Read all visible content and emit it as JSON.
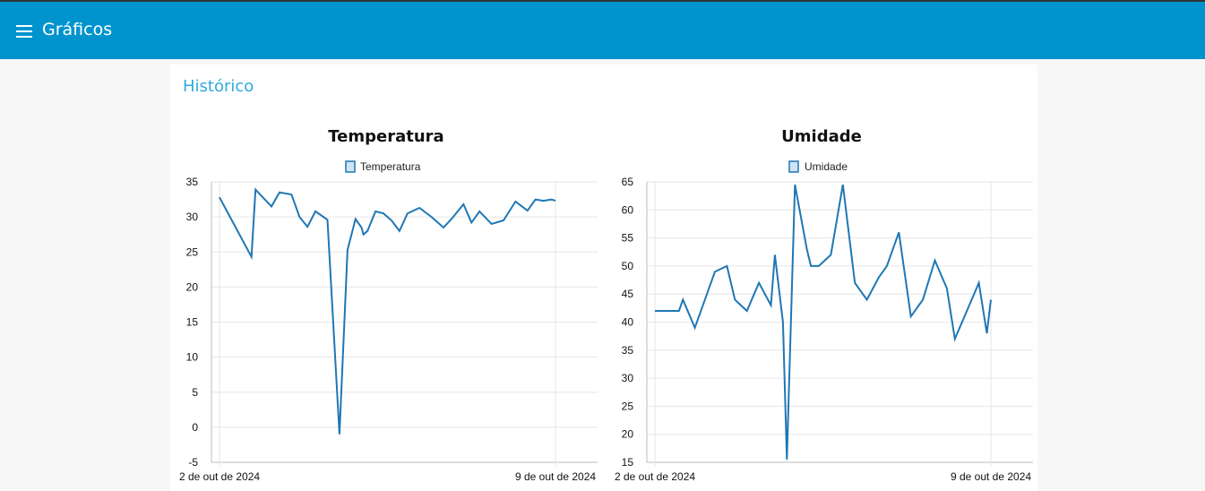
{
  "appbar": {
    "title": "Gráficos",
    "menu_icon": "hamburger-menu-icon"
  },
  "card": {
    "title": "Histórico"
  },
  "colors": {
    "appbar": "#0094ce",
    "accent_title": "#2fa9e0",
    "series": "#1f77b4",
    "legend_fill": "#cfe3f3"
  },
  "charts": [
    {
      "id": "temp",
      "title": "Temperatura",
      "legend": "Temperatura",
      "y_ticks": [
        "35",
        "30",
        "25",
        "20",
        "15",
        "10",
        "5",
        "0",
        "-5"
      ],
      "x_ticks": [
        "2 de out de 2024",
        "9 de out de 2024"
      ]
    },
    {
      "id": "umid",
      "title": "Umidade",
      "legend": "Umidade",
      "y_ticks": [
        "65",
        "60",
        "55",
        "50",
        "45",
        "40",
        "35",
        "30",
        "25",
        "20",
        "15"
      ],
      "x_ticks": [
        "2 de out de 2024",
        "9 de out de 2024"
      ]
    }
  ],
  "chart_data": [
    {
      "type": "line",
      "title": "Temperatura",
      "legend": [
        "Temperatura"
      ],
      "x_range": [
        "2024-10-02",
        "2024-10-09"
      ],
      "ylim": [
        -5,
        35
      ],
      "grid": true,
      "legend_position": "top",
      "series": [
        {
          "name": "Temperatura",
          "x": [
            "2024-10-02T00:00",
            "2024-10-02T16:00",
            "2024-10-02T18:00",
            "2024-10-03T02:00",
            "2024-10-03T06:00",
            "2024-10-03T12:00",
            "2024-10-03T16:00",
            "2024-10-03T20:00",
            "2024-10-04T00:00",
            "2024-10-04T06:00",
            "2024-10-04T12:00",
            "2024-10-04T16:00",
            "2024-10-04T20:00",
            "2024-10-04T23:00",
            "2024-10-05T00:00",
            "2024-10-05T02:00",
            "2024-10-05T06:00",
            "2024-10-05T10:00",
            "2024-10-05T14:00",
            "2024-10-05T18:00",
            "2024-10-05T22:00",
            "2024-10-06T04:00",
            "2024-10-06T10:00",
            "2024-10-06T16:00",
            "2024-10-06T20:00",
            "2024-10-07T02:00",
            "2024-10-07T06:00",
            "2024-10-07T10:00",
            "2024-10-07T16:00",
            "2024-10-07T22:00",
            "2024-10-08T04:00",
            "2024-10-08T10:00",
            "2024-10-08T14:00",
            "2024-10-08T18:00",
            "2024-10-08T22:00",
            "2024-10-09T00:00"
          ],
          "y": [
            32.8,
            24.3,
            33.9,
            31.5,
            33.5,
            33.2,
            30.0,
            28.6,
            30.8,
            29.6,
            -1.0,
            25.3,
            29.7,
            28.5,
            27.5,
            28.0,
            30.8,
            30.5,
            29.5,
            28.0,
            30.5,
            31.3,
            30.0,
            28.5,
            29.7,
            31.8,
            29.2,
            30.8,
            29.0,
            29.5,
            32.2,
            30.9,
            32.5,
            32.3,
            32.5,
            32.3
          ]
        }
      ]
    },
    {
      "type": "line",
      "title": "Umidade",
      "legend": [
        "Umidade"
      ],
      "x_range": [
        "2024-10-02",
        "2024-10-09"
      ],
      "ylim": [
        15,
        65
      ],
      "grid": true,
      "legend_position": "top",
      "series": [
        {
          "name": "Umidade",
          "x": [
            "2024-10-02T00:00",
            "2024-10-02T12:00",
            "2024-10-02T14:00",
            "2024-10-02T20:00",
            "2024-10-03T06:00",
            "2024-10-03T12:00",
            "2024-10-03T16:00",
            "2024-10-03T22:00",
            "2024-10-04T04:00",
            "2024-10-04T10:00",
            "2024-10-04T12:00",
            "2024-10-04T16:00",
            "2024-10-04T18:00",
            "2024-10-04T22:00",
            "2024-10-05T04:00",
            "2024-10-05T06:00",
            "2024-10-05T10:00",
            "2024-10-05T16:00",
            "2024-10-05T22:00",
            "2024-10-06T04:00",
            "2024-10-06T10:00",
            "2024-10-06T16:00",
            "2024-10-06T20:00",
            "2024-10-07T02:00",
            "2024-10-07T08:00",
            "2024-10-07T14:00",
            "2024-10-07T20:00",
            "2024-10-08T02:00",
            "2024-10-08T06:00",
            "2024-10-08T12:00",
            "2024-10-08T18:00",
            "2024-10-08T22:00",
            "2024-10-09T00:00"
          ],
          "y": [
            42,
            42,
            44,
            39,
            49,
            50,
            44,
            42,
            47,
            43,
            52,
            40,
            15.5,
            64.5,
            53,
            50,
            50,
            52,
            64.5,
            47,
            44,
            48,
            50,
            56,
            41,
            44,
            51,
            46,
            37,
            42,
            47,
            38,
            44
          ]
        }
      ]
    }
  ]
}
